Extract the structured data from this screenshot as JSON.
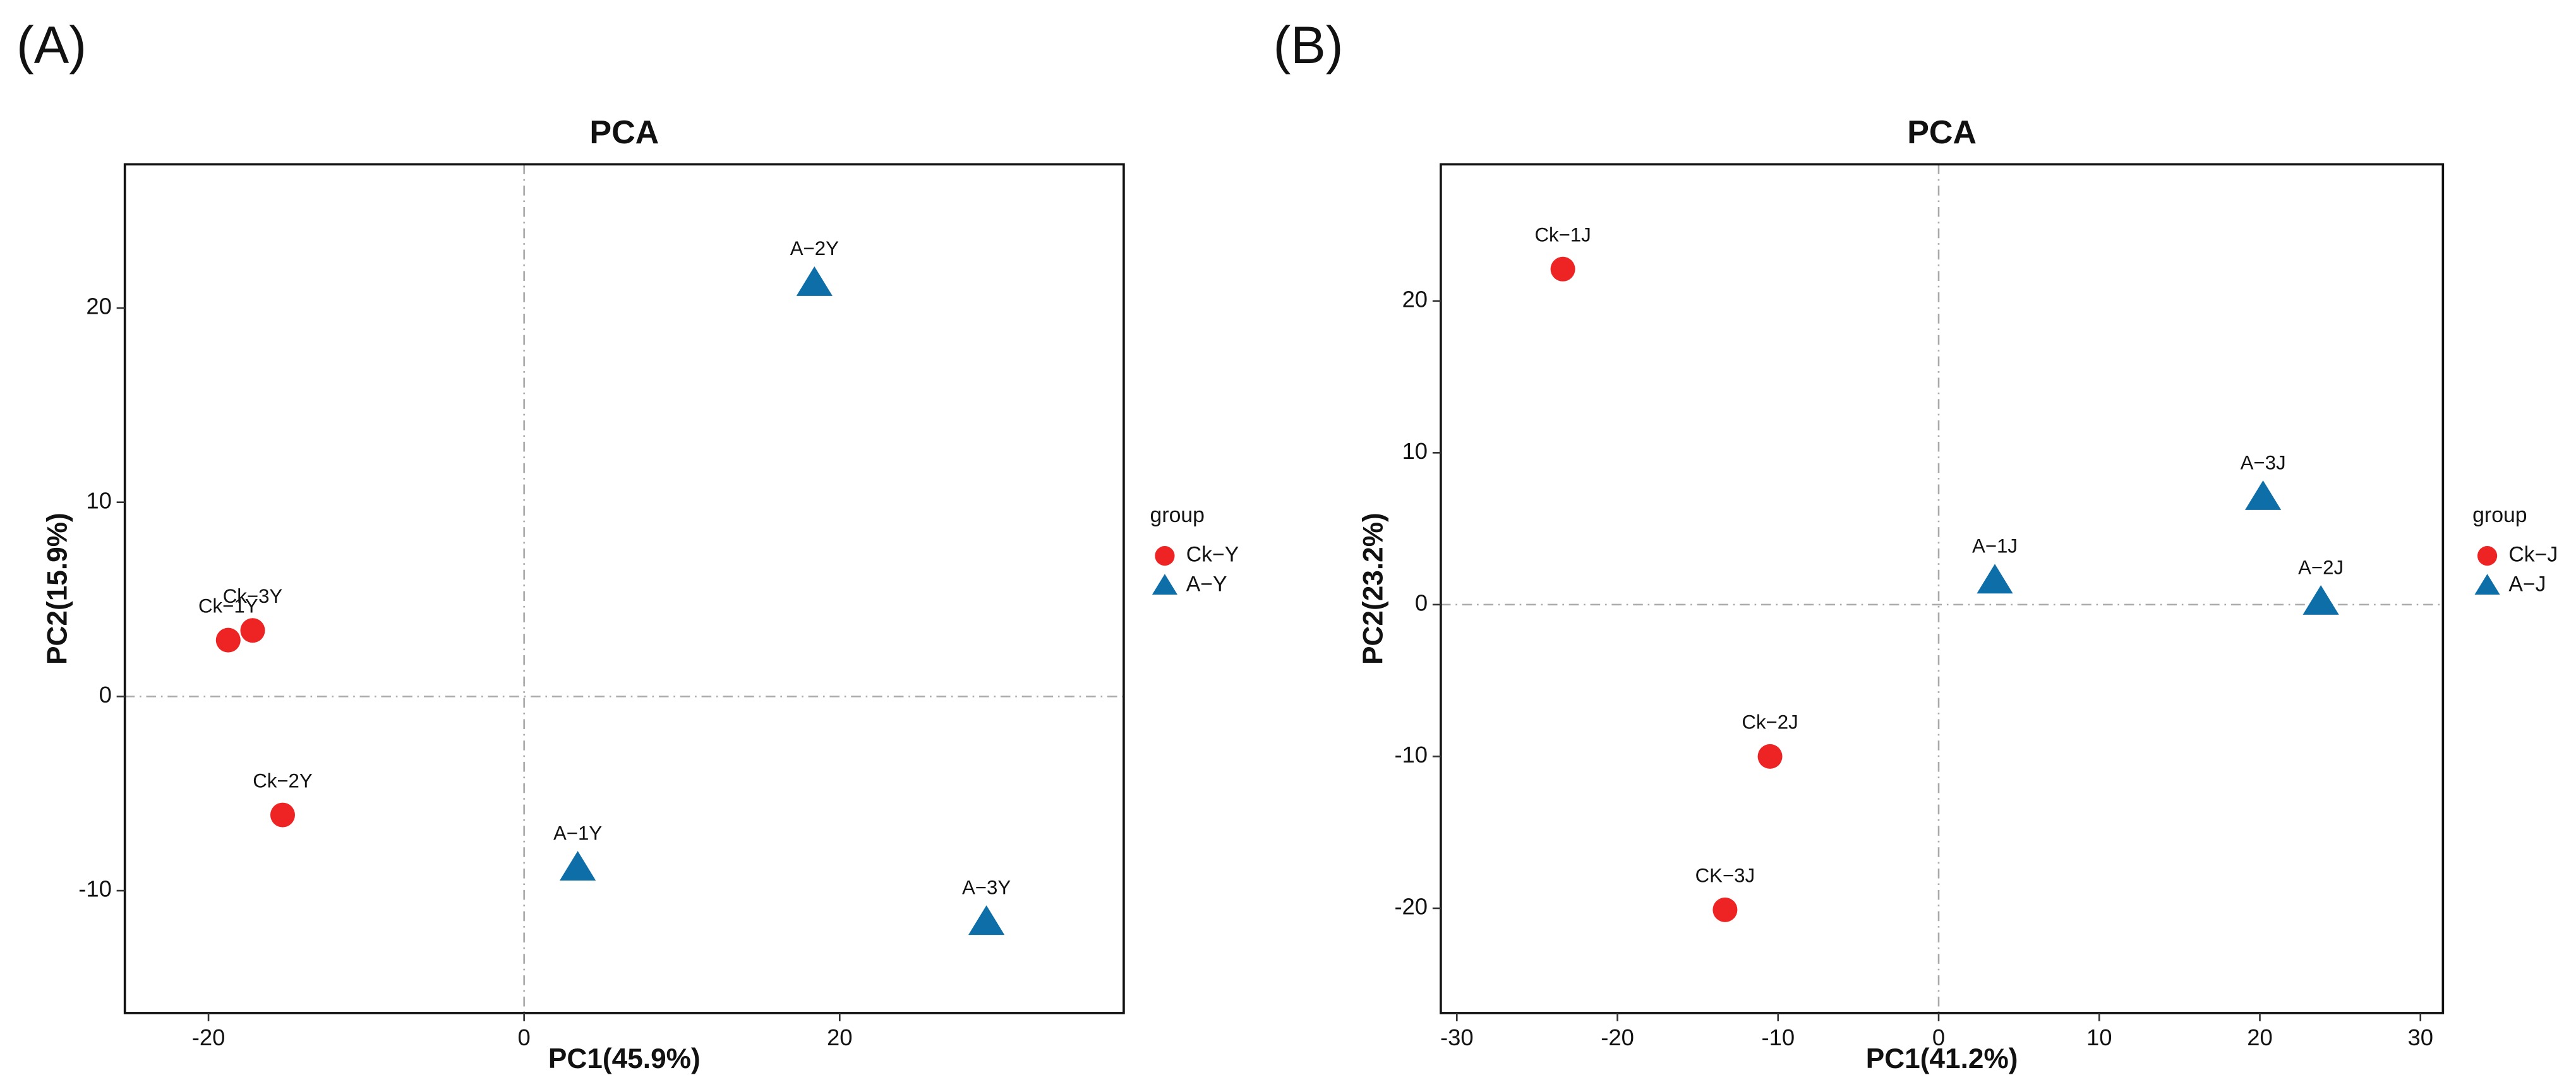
{
  "chart_data": [
    {
      "panel_label": "(A)",
      "type": "scatter",
      "title": "PCA",
      "xlabel": "PC1(45.9%)",
      "ylabel": "PC2(15.9%)",
      "xlim": [
        -25.3,
        38.0
      ],
      "ylim": [
        -16.3,
        27.4
      ],
      "xticks": [
        -20,
        0,
        20
      ],
      "yticks": [
        -10,
        0,
        10,
        20
      ],
      "zero_lines": true,
      "legend_title": "group",
      "legend": "right",
      "series": [
        {
          "name": "Ck−Y",
          "color": "#ee2424",
          "marker": "circle",
          "x": [
            -18.75,
            -17.2,
            -15.3
          ],
          "values": [
            2.9,
            3.4,
            -6.1
          ],
          "labels": [
            "Ck−1Y",
            "Ck−3Y",
            "Ck−2Y"
          ]
        },
        {
          "name": "A−Y",
          "color": "#0e6ea8",
          "marker": "triangle",
          "x": [
            18.4,
            3.4,
            29.3
          ],
          "values": [
            21.3,
            -8.8,
            -11.6
          ],
          "labels": [
            "A−2Y",
            "A−1Y",
            "A−3Y"
          ]
        }
      ]
    },
    {
      "panel_label": "(B)",
      "type": "scatter",
      "title": "PCA",
      "xlabel": "PC1(41.2%)",
      "ylabel": "PC2(23.2%)",
      "xlim": [
        -31.0,
        31.4
      ],
      "ylim": [
        -26.9,
        29.0
      ],
      "xticks": [
        -30,
        -20,
        -10,
        0,
        10,
        20,
        30
      ],
      "yticks": [
        -20,
        -10,
        0,
        10,
        20
      ],
      "zero_lines": true,
      "legend_title": "group",
      "legend": "right",
      "series": [
        {
          "name": "Ck−J",
          "color": "#ee2424",
          "marker": "circle",
          "x": [
            -23.4,
            -10.5,
            -13.3
          ],
          "values": [
            22.1,
            -10.0,
            -20.1
          ],
          "labels": [
            "Ck−1J",
            "Ck−2J",
            "CK−3J"
          ]
        },
        {
          "name": "A−J",
          "color": "#0e6ea8",
          "marker": "triangle",
          "x": [
            3.5,
            20.2,
            23.8
          ],
          "values": [
            1.6,
            7.1,
            0.2
          ],
          "labels": [
            "A−1J",
            "A−3J",
            "A−2J"
          ]
        }
      ]
    }
  ]
}
